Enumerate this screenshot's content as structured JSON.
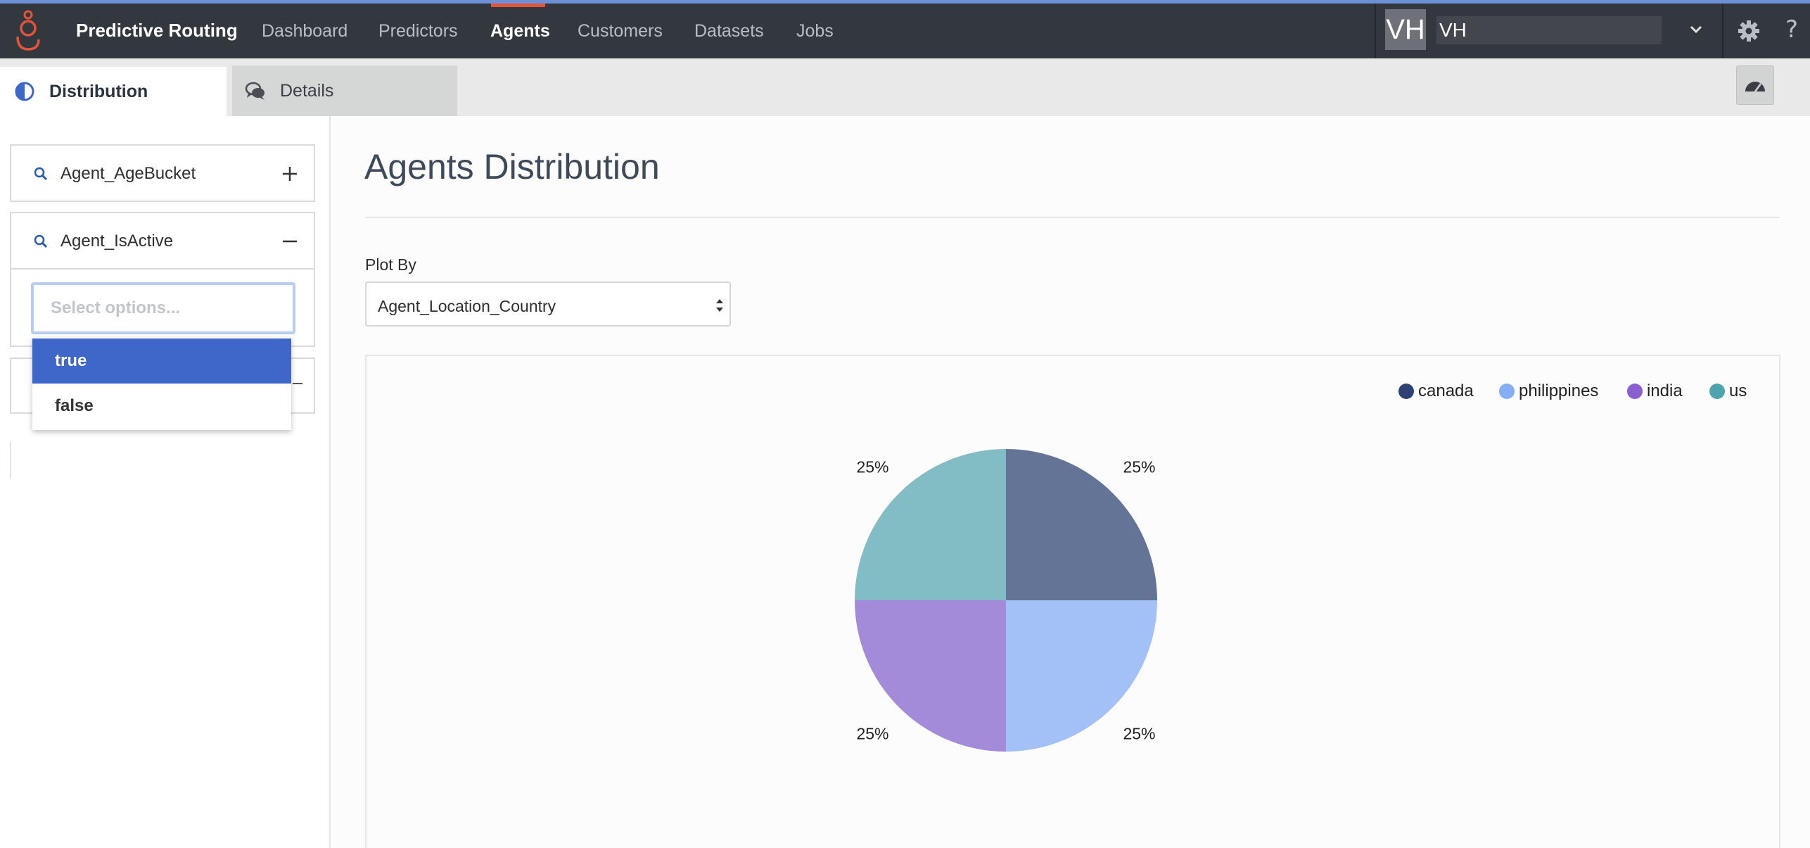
{
  "app": {
    "title": "Predictive Routing"
  },
  "nav": {
    "items": [
      {
        "label": "Dashboard",
        "active": false
      },
      {
        "label": "Predictors",
        "active": false
      },
      {
        "label": "Agents",
        "active": true
      },
      {
        "label": "Customers",
        "active": false
      },
      {
        "label": "Datasets",
        "active": false
      },
      {
        "label": "Jobs",
        "active": false
      }
    ]
  },
  "user": {
    "initials": "VH",
    "selected": "VH"
  },
  "tabs": [
    {
      "label": "Distribution",
      "active": true,
      "icon": "half-circle-icon"
    },
    {
      "label": "Details",
      "active": false,
      "icon": "chat-bubbles-icon"
    }
  ],
  "filters": {
    "items": [
      {
        "label": "Agent_AgeBucket",
        "state": "collapsed"
      },
      {
        "label": "Agent_IsActive",
        "state": "expanded"
      }
    ],
    "select_placeholder": "Select options...",
    "options": [
      "true",
      "false"
    ],
    "highlighted_option": "true"
  },
  "main": {
    "title": "Agents Distribution",
    "plot_by_label": "Plot By",
    "plot_by_value": "Agent_Location_Country"
  },
  "chart_data": {
    "type": "pie",
    "title": "",
    "legend_position": "top-right",
    "categories": [
      "canada",
      "philippines",
      "india",
      "us"
    ],
    "values": [
      25,
      25,
      25,
      25
    ],
    "labels": [
      "25%",
      "25%",
      "25%",
      "25%"
    ],
    "legend_colors": [
      "#2e4274",
      "#86aef5",
      "#8a5fd0",
      "#4ea3ad"
    ],
    "slice_colors": [
      "#637497",
      "#a3c0f7",
      "#a38bd9",
      "#82bdc5"
    ]
  }
}
